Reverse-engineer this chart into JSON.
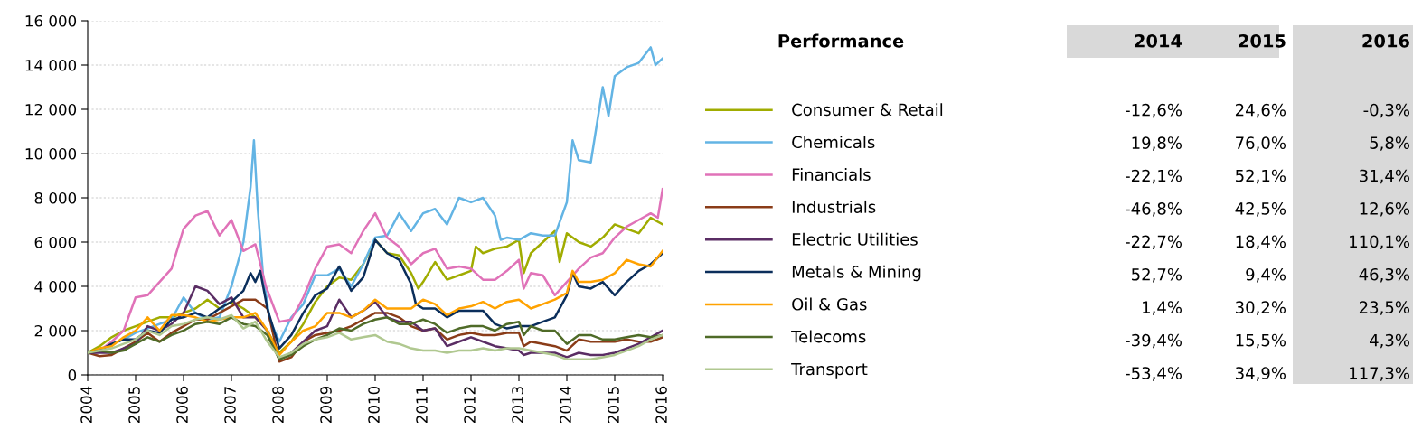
{
  "chart_data": [
    {
      "type": "line",
      "xlim": [
        2004,
        2016
      ],
      "ylim": [
        0,
        16000
      ],
      "xticks": [
        2004,
        2005,
        2006,
        2007,
        2008,
        2009,
        2010,
        2011,
        2012,
        2013,
        2014,
        2015,
        2016
      ],
      "yticks": [
        0,
        {
          "value": 2000,
          "label": "2 000"
        },
        {
          "value": 4000,
          "label": "4 000"
        },
        {
          "value": 6000,
          "label": "6 000"
        },
        {
          "value": 8000,
          "label": "8 000"
        },
        {
          "value": 10000,
          "label": "10 000"
        },
        {
          "value": 12000,
          "label": "12 000"
        },
        {
          "value": 14000,
          "label": "14 000"
        },
        {
          "value": 16000,
          "label": "16 000"
        }
      ],
      "grid": "y",
      "legend": "right",
      "marker": "none",
      "line_style": "solid",
      "series": [
        {
          "name": "Consumer & Retail",
          "color": "#a0ac00",
          "x": [
            2004,
            2004.25,
            2004.5,
            2004.75,
            2005,
            2005.25,
            2005.5,
            2005.75,
            2006,
            2006.25,
            2006.5,
            2006.75,
            2007,
            2007.25,
            2007.5,
            2007.75,
            2008,
            2008.25,
            2008.5,
            2008.75,
            2009,
            2009.25,
            2009.5,
            2009.75,
            2010,
            2010.25,
            2010.5,
            2010.75,
            2010.9,
            2011,
            2011.25,
            2011.5,
            2011.75,
            2012,
            2012.1,
            2012.25,
            2012.5,
            2012.75,
            2013,
            2013.1,
            2013.25,
            2013.5,
            2013.75,
            2013.85,
            2014,
            2014.25,
            2014.5,
            2014.75,
            2015,
            2015.25,
            2015.5,
            2015.75,
            2016
          ],
          "values": [
            1000,
            1300,
            1700,
            2000,
            2200,
            2400,
            2600,
            2600,
            2800,
            3000,
            3400,
            3000,
            3300,
            3000,
            2600,
            2000,
            1000,
            1500,
            2300,
            3300,
            4000,
            4400,
            4300,
            5000,
            6100,
            5500,
            5400,
            4600,
            3900,
            4200,
            5100,
            4300,
            4500,
            4700,
            5800,
            5500,
            5700,
            5800,
            6100,
            4600,
            5500,
            6000,
            6500,
            5100,
            6400,
            6000,
            5800,
            6200,
            6800,
            6600,
            6400,
            7100,
            6800
          ]
        },
        {
          "name": "Chemicals",
          "color": "#63b4e4",
          "x": [
            2004.5,
            2004.75,
            2005,
            2005.25,
            2005.5,
            2005.75,
            2006,
            2006.25,
            2006.5,
            2006.75,
            2007,
            2007.25,
            2007.4,
            2007.47,
            2007.55,
            2007.66,
            2007.8,
            2008,
            2008.25,
            2008.5,
            2008.75,
            2009,
            2009.25,
            2009.5,
            2009.75,
            2010,
            2010.25,
            2010.5,
            2010.75,
            2011,
            2011.25,
            2011.5,
            2011.75,
            2012,
            2012.25,
            2012.5,
            2012.62,
            2012.75,
            2013,
            2013.25,
            2013.5,
            2013.75,
            2014,
            2014.12,
            2014.25,
            2014.5,
            2014.75,
            2014.87,
            2015,
            2015.25,
            2015.5,
            2015.75,
            2015.85,
            2016
          ],
          "values": [
            1400,
            1600,
            1900,
            2100,
            2300,
            2500,
            3500,
            2800,
            2500,
            2600,
            4000,
            6000,
            8500,
            10600,
            7500,
            4500,
            2500,
            1500,
            2600,
            3200,
            4500,
            4500,
            4800,
            4000,
            5000,
            6200,
            6300,
            7300,
            6500,
            7300,
            7500,
            6800,
            8000,
            7800,
            8000,
            7200,
            6100,
            6200,
            6100,
            6400,
            6300,
            6300,
            7800,
            10600,
            9700,
            9600,
            13000,
            11700,
            13500,
            13900,
            14100,
            14800,
            14000,
            14300
          ]
        },
        {
          "name": "Financials",
          "color": "#e072b8",
          "x": [
            2004,
            2004.25,
            2004.5,
            2004.75,
            2005,
            2005.25,
            2005.5,
            2005.75,
            2006,
            2006.25,
            2006.5,
            2006.75,
            2007,
            2007.25,
            2007.5,
            2007.72,
            2008,
            2008.25,
            2008.5,
            2008.75,
            2009,
            2009.25,
            2009.5,
            2009.75,
            2010,
            2010.25,
            2010.5,
            2010.75,
            2011,
            2011.25,
            2011.5,
            2011.75,
            2012,
            2012.25,
            2012.5,
            2012.75,
            2013,
            2013.1,
            2013.25,
            2013.5,
            2013.75,
            2014,
            2014.25,
            2014.5,
            2014.75,
            2015,
            2015.25,
            2015.5,
            2015.75,
            2015.9,
            2016
          ],
          "values": [
            1000,
            1100,
            1500,
            2000,
            3500,
            3600,
            4200,
            4800,
            6600,
            7200,
            7400,
            6300,
            7000,
            5600,
            5900,
            4000,
            2400,
            2500,
            3500,
            4800,
            5800,
            5900,
            5500,
            6500,
            7300,
            6200,
            5800,
            5000,
            5500,
            5700,
            4800,
            4900,
            4800,
            4300,
            4300,
            4700,
            5200,
            3900,
            4600,
            4500,
            3600,
            4200,
            4800,
            5300,
            5500,
            6200,
            6700,
            7000,
            7300,
            7100,
            8400
          ]
        },
        {
          "name": "Industrials",
          "color": "#8a3c18",
          "x": [
            2004,
            2004.25,
            2004.5,
            2004.75,
            2005,
            2005.25,
            2005.5,
            2005.75,
            2006,
            2006.25,
            2006.5,
            2006.75,
            2007,
            2007.25,
            2007.5,
            2007.75,
            2008,
            2008.25,
            2008.5,
            2008.75,
            2009,
            2009.25,
            2009.5,
            2009.75,
            2010,
            2010.25,
            2010.5,
            2010.75,
            2011,
            2011.25,
            2011.5,
            2011.75,
            2012,
            2012.25,
            2012.5,
            2012.75,
            2013,
            2013.1,
            2013.25,
            2013.5,
            2013.75,
            2014,
            2014.25,
            2014.5,
            2014.75,
            2015,
            2015.25,
            2015.5,
            2015.75,
            2016
          ],
          "values": [
            1000,
            850,
            900,
            1200,
            1500,
            1900,
            1500,
            1900,
            2200,
            2500,
            2500,
            2800,
            3100,
            3400,
            3400,
            3000,
            600,
            800,
            1500,
            1800,
            1900,
            2000,
            2200,
            2500,
            2800,
            2800,
            2600,
            2200,
            2000,
            2100,
            1600,
            1800,
            1900,
            1800,
            1800,
            1900,
            1900,
            1300,
            1500,
            1400,
            1300,
            1100,
            1600,
            1500,
            1500,
            1500,
            1600,
            1500,
            1500,
            1700
          ]
        },
        {
          "name": "Electric Utilities",
          "color": "#5a2d64",
          "x": [
            2004,
            2004.25,
            2004.5,
            2004.75,
            2005,
            2005.25,
            2005.5,
            2005.75,
            2006,
            2006.25,
            2006.5,
            2006.75,
            2007,
            2007.25,
            2007.5,
            2007.75,
            2008,
            2008.25,
            2008.5,
            2008.75,
            2009,
            2009.25,
            2009.5,
            2009.75,
            2010,
            2010.25,
            2010.5,
            2010.75,
            2011,
            2011.25,
            2011.5,
            2011.75,
            2012,
            2012.25,
            2012.5,
            2012.75,
            2013,
            2013.1,
            2013.25,
            2013.5,
            2013.75,
            2014,
            2014.25,
            2014.5,
            2014.75,
            2015,
            2015.25,
            2015.5,
            2015.75,
            2016
          ],
          "values": [
            1000,
            1000,
            1000,
            1200,
            1400,
            2200,
            2000,
            2300,
            2800,
            4000,
            3800,
            3200,
            3500,
            2600,
            2600,
            2000,
            700,
            1000,
            1500,
            2000,
            2200,
            3400,
            2600,
            2900,
            3300,
            2600,
            2400,
            2400,
            2000,
            2100,
            1300,
            1500,
            1700,
            1500,
            1300,
            1200,
            1100,
            900,
            1000,
            1000,
            1000,
            800,
            1000,
            900,
            900,
            1000,
            1200,
            1400,
            1700,
            2000
          ]
        },
        {
          "name": "Metals & Mining",
          "color": "#0b2e5b",
          "x": [
            2004,
            2004.25,
            2004.5,
            2004.75,
            2005,
            2005.25,
            2005.5,
            2005.75,
            2006,
            2006.25,
            2006.5,
            2006.75,
            2007,
            2007.25,
            2007.4,
            2007.5,
            2007.6,
            2007.75,
            2008,
            2008.25,
            2008.5,
            2008.75,
            2009,
            2009.25,
            2009.5,
            2009.75,
            2010,
            2010.25,
            2010.5,
            2010.75,
            2010.85,
            2011,
            2011.25,
            2011.5,
            2011.75,
            2012,
            2012.25,
            2012.5,
            2012.75,
            2013,
            2013.25,
            2013.5,
            2013.75,
            2014,
            2014.12,
            2014.25,
            2014.5,
            2014.75,
            2015,
            2015.25,
            2015.5,
            2015.75,
            2016
          ],
          "values": [
            1000,
            1100,
            1400,
            1600,
            1600,
            2000,
            1900,
            2500,
            2600,
            2800,
            2600,
            3000,
            3300,
            3800,
            4600,
            4200,
            4700,
            3000,
            1200,
            1800,
            2800,
            3600,
            3900,
            4900,
            3800,
            4400,
            6100,
            5500,
            5200,
            4100,
            3200,
            3000,
            3000,
            2600,
            2900,
            2900,
            2900,
            2300,
            2100,
            2200,
            2200,
            2400,
            2600,
            3600,
            4600,
            4000,
            3900,
            4200,
            3600,
            4200,
            4700,
            5000,
            5500
          ]
        },
        {
          "name": "Oil & Gas",
          "color": "#ffa200",
          "x": [
            2004,
            2004.25,
            2004.5,
            2004.75,
            2005,
            2005.25,
            2005.5,
            2005.75,
            2006,
            2006.25,
            2006.5,
            2006.75,
            2007,
            2007.25,
            2007.5,
            2007.75,
            2008,
            2008.25,
            2008.5,
            2008.75,
            2009,
            2009.25,
            2009.5,
            2009.75,
            2010,
            2010.25,
            2010.5,
            2010.75,
            2011,
            2011.25,
            2011.5,
            2011.75,
            2012,
            2012.25,
            2012.5,
            2012.75,
            2013,
            2013.25,
            2013.5,
            2013.75,
            2014,
            2014.12,
            2014.25,
            2014.5,
            2014.75,
            2015,
            2015.25,
            2015.5,
            2015.75,
            2016
          ],
          "values": [
            1000,
            1200,
            1300,
            1700,
            2000,
            2600,
            2000,
            2700,
            2700,
            2600,
            2400,
            2500,
            2600,
            2600,
            2800,
            2000,
            900,
            1500,
            2000,
            2200,
            2800,
            2800,
            2600,
            2900,
            3400,
            3000,
            3000,
            3000,
            3400,
            3200,
            2700,
            3000,
            3100,
            3300,
            3000,
            3300,
            3400,
            3000,
            3200,
            3400,
            3700,
            4700,
            4200,
            4200,
            4300,
            4600,
            5200,
            5000,
            4900,
            5600
          ]
        },
        {
          "name": "Telecoms",
          "color": "#4f6b28",
          "x": [
            2004,
            2004.25,
            2004.5,
            2004.75,
            2005,
            2005.25,
            2005.5,
            2005.75,
            2006,
            2006.25,
            2006.5,
            2006.75,
            2007,
            2007.25,
            2007.5,
            2007.75,
            2008,
            2008.25,
            2008.5,
            2008.75,
            2009,
            2009.25,
            2009.5,
            2009.75,
            2010,
            2010.25,
            2010.5,
            2010.75,
            2011,
            2011.25,
            2011.5,
            2011.75,
            2012,
            2012.25,
            2012.5,
            2012.75,
            2013,
            2013.1,
            2013.25,
            2013.5,
            2013.75,
            2014,
            2014.25,
            2014.5,
            2014.75,
            2015,
            2015.25,
            2015.5,
            2015.75,
            2016
          ],
          "values": [
            1000,
            1100,
            1000,
            1100,
            1400,
            1700,
            1500,
            1800,
            2000,
            2300,
            2400,
            2300,
            2600,
            2300,
            2200,
            1800,
            700,
            900,
            1300,
            1600,
            1800,
            2100,
            2000,
            2300,
            2500,
            2600,
            2300,
            2300,
            2500,
            2300,
            1900,
            2100,
            2200,
            2200,
            2000,
            2300,
            2400,
            1800,
            2200,
            2000,
            2000,
            1400,
            1800,
            1800,
            1600,
            1600,
            1700,
            1800,
            1700,
            1800
          ]
        },
        {
          "name": "Transport",
          "color": "#b0c890",
          "x": [
            2004,
            2004.25,
            2004.5,
            2004.75,
            2005,
            2005.25,
            2005.5,
            2005.75,
            2006,
            2006.25,
            2006.5,
            2006.75,
            2007,
            2007.25,
            2007.5,
            2007.75,
            2008,
            2008.25,
            2008.5,
            2008.75,
            2009,
            2009.25,
            2009.5,
            2009.75,
            2010,
            2010.25,
            2010.5,
            2010.75,
            2011,
            2011.25,
            2011.5,
            2011.75,
            2012,
            2012.25,
            2012.5,
            2012.75,
            2013,
            2013.25,
            2013.5,
            2013.75,
            2014,
            2014.25,
            2014.5,
            2014.75,
            2015,
            2015.25,
            2015.5,
            2015.75,
            2016
          ],
          "values": [
            1000,
            1100,
            1200,
            1400,
            1600,
            2000,
            1800,
            2200,
            2300,
            2500,
            2600,
            2500,
            2700,
            2100,
            2400,
            1500,
            800,
            1000,
            1400,
            1600,
            1700,
            1900,
            1600,
            1700,
            1800,
            1500,
            1400,
            1200,
            1100,
            1100,
            1000,
            1100,
            1100,
            1200,
            1100,
            1200,
            1200,
            1100,
            1000,
            900,
            700,
            700,
            700,
            800,
            900,
            1100,
            1300,
            1600,
            1800
          ]
        }
      ]
    },
    {
      "type": "other",
      "title": "Performance",
      "categories": [
        "2014",
        "2015",
        "2016"
      ],
      "cell_labels": [
        [
          "-12,6%",
          "24,6%",
          "-0,3%"
        ],
        [
          "19,8%",
          "76,0%",
          "5,8%"
        ],
        [
          "-22,1%",
          "52,1%",
          "31,4%"
        ],
        [
          "-46,8%",
          "42,5%",
          "12,6%"
        ],
        [
          "-22,7%",
          "18,4%",
          "110,1%"
        ],
        [
          "52,7%",
          "9,4%",
          "46,3%"
        ],
        [
          "1,4%",
          "30,2%",
          "23,5%"
        ],
        [
          "-39,4%",
          "15,5%",
          "4,3%"
        ],
        [
          "-53,4%",
          "34,9%",
          "117,3%"
        ]
      ]
    }
  ]
}
